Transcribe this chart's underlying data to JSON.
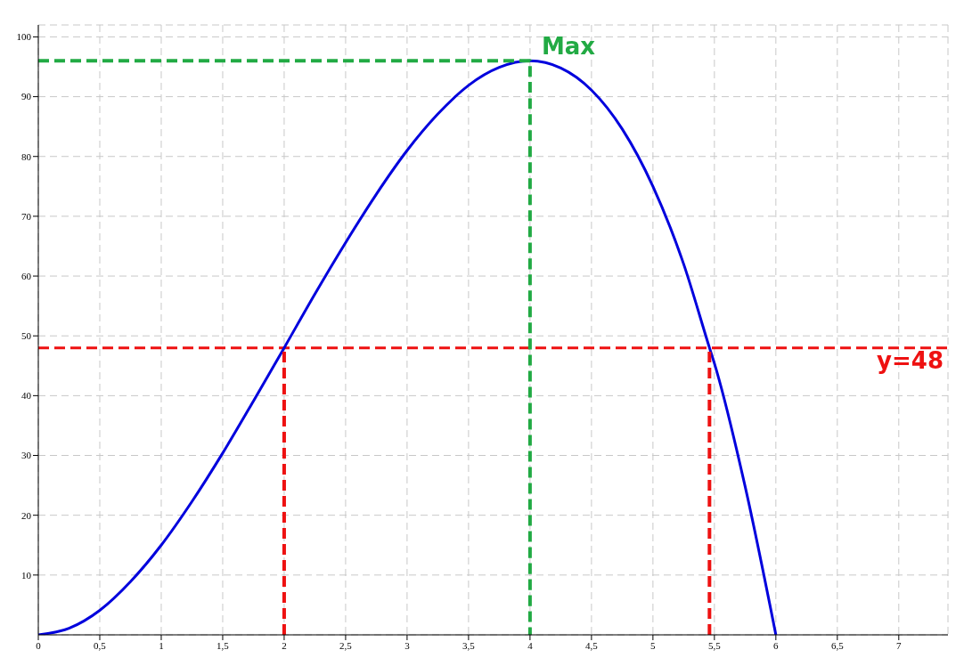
{
  "chart_data": {
    "type": "line",
    "x": [
      0,
      0.25,
      0.5,
      0.75,
      1,
      1.25,
      1.5,
      1.75,
      2,
      2.25,
      2.5,
      2.75,
      3,
      3.25,
      3.5,
      3.75,
      4,
      4.25,
      4.5,
      4.75,
      5,
      5.25,
      5.46,
      5.5,
      5.75,
      6
    ],
    "series": [
      {
        "color": "#0000dd",
        "values": [
          0,
          1.1,
          4.1,
          8.9,
          15,
          22.3,
          30.4,
          39.1,
          48,
          57,
          65.6,
          73.7,
          81,
          87.1,
          91.9,
          94.9,
          96,
          94.8,
          91.1,
          84.6,
          75,
          62,
          48,
          45.4,
          24.8,
          0
        ]
      },
      {
        "type": "line",
        "color": "#22aa44",
        "line_style": "dashed",
        "x": [
          0,
          4,
          4
        ],
        "values": [
          96,
          96,
          0
        ]
      },
      {
        "type": "line",
        "color": "#ee1111",
        "line_style": "dashed",
        "x": [
          2,
          2
        ],
        "values": [
          0,
          48
        ]
      },
      {
        "type": "line",
        "color": "#ee1111",
        "line_style": "dashed",
        "x": [
          5.46,
          5.46
        ],
        "values": [
          0,
          48
        ]
      }
    ],
    "xlim": [
      0,
      7.4
    ],
    "ylim": [
      0,
      102
    ],
    "xticks": [
      0,
      {
        "value": 0.5,
        "label": "0,5"
      },
      1,
      {
        "value": 1.5,
        "label": "1,5"
      },
      2,
      {
        "value": 2.5,
        "label": "2,5"
      },
      3,
      {
        "value": 3.5,
        "label": "3,5"
      },
      4,
      {
        "value": 4.5,
        "label": "4,5"
      },
      5,
      {
        "value": 5.5,
        "label": "5,5"
      },
      6,
      {
        "value": 6.5,
        "label": "6,5"
      },
      7
    ],
    "yticks": [
      10,
      20,
      30,
      40,
      50,
      60,
      70,
      80,
      90,
      100
    ],
    "ref_lines": [
      {
        "axis": "y",
        "value": 48,
        "label": "y=48",
        "color": "#ee1111",
        "line_style": "dashed"
      }
    ],
    "annotations": [
      {
        "text": "Max",
        "x": 4,
        "y": 96
      }
    ],
    "grid": true,
    "legend": false,
    "marker": "none",
    "line_style": "solid"
  }
}
